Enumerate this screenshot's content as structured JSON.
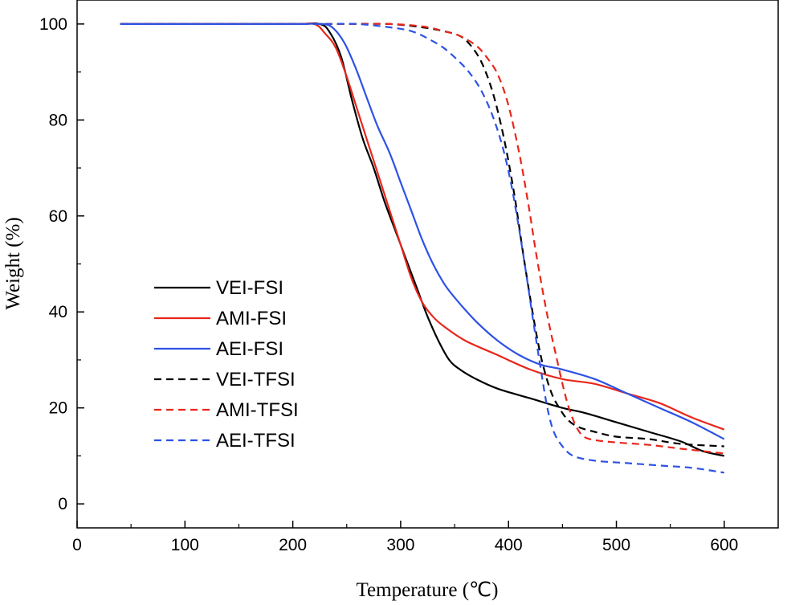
{
  "chart_data": {
    "type": "line",
    "title": "",
    "xlabel": "Temperature (℃)",
    "ylabel": "Weight (%)",
    "xlim": [
      0,
      650
    ],
    "ylim": [
      -5,
      105
    ],
    "xticks": [
      0,
      100,
      200,
      300,
      400,
      500,
      600
    ],
    "yticks": [
      0,
      20,
      40,
      60,
      80,
      100
    ],
    "xtick_labels": [
      "0",
      "100",
      "200",
      "300",
      "400",
      "500",
      "600"
    ],
    "ytick_labels": [
      "0",
      "20",
      "40",
      "60",
      "80",
      "100"
    ],
    "grid": false,
    "legend_position": "center-left",
    "series": [
      {
        "name": "VEI-FSI",
        "color": "#000000",
        "dash": "solid",
        "x": [
          40,
          100,
          200,
          225,
          235,
          245,
          255,
          265,
          275,
          285,
          295,
          305,
          315,
          325,
          335,
          345,
          355,
          370,
          390,
          420,
          450,
          470,
          500,
          530,
          560,
          580,
          600
        ],
        "y": [
          100,
          100,
          100,
          100,
          98,
          93,
          84,
          76,
          70,
          63,
          57,
          51,
          45,
          39,
          34,
          30,
          28,
          26,
          24,
          22,
          20,
          19,
          17,
          15,
          13,
          11,
          10
        ]
      },
      {
        "name": "AMI-FSI",
        "color": "#e8261b",
        "dash": "solid",
        "x": [
          40,
          100,
          200,
          220,
          230,
          240,
          250,
          260,
          270,
          280,
          290,
          300,
          310,
          320,
          330,
          340,
          360,
          390,
          420,
          450,
          480,
          510,
          540,
          570,
          600
        ],
        "y": [
          100,
          100,
          100,
          100,
          98,
          95,
          89,
          82,
          75,
          68,
          61,
          54,
          47,
          42,
          39,
          37,
          34,
          31,
          28,
          26,
          25,
          23,
          21,
          18,
          15.5
        ]
      },
      {
        "name": "AEI-FSI",
        "color": "#2d52e6",
        "dash": "solid",
        "x": [
          40,
          100,
          200,
          228,
          238,
          248,
          258,
          268,
          278,
          290,
          300,
          310,
          320,
          330,
          340,
          350,
          370,
          390,
          410,
          430,
          450,
          480,
          510,
          540,
          570,
          600
        ],
        "y": [
          100,
          100,
          100,
          100,
          99,
          96,
          91,
          85,
          79,
          73,
          67,
          61,
          55,
          50,
          46,
          43,
          38,
          34,
          31,
          29,
          28,
          26,
          23,
          20,
          17,
          13.5
        ]
      },
      {
        "name": "VEI-TFSI",
        "color": "#000000",
        "dash": "dashed",
        "x": [
          40,
          100,
          200,
          250,
          290,
          320,
          340,
          355,
          365,
          375,
          385,
          395,
          405,
          413,
          420,
          427,
          433,
          440,
          447,
          455,
          465,
          480,
          500,
          530,
          560,
          600
        ],
        "y": [
          100,
          100,
          100,
          100,
          100,
          99.3,
          98.5,
          97.5,
          95.5,
          92,
          86,
          77,
          65,
          53,
          43,
          34,
          28,
          23,
          20,
          17.5,
          16,
          15,
          14,
          13.5,
          12.5,
          12
        ]
      },
      {
        "name": "AMI-TFSI",
        "color": "#e8261b",
        "dash": "dashed",
        "x": [
          40,
          100,
          200,
          250,
          290,
          320,
          340,
          355,
          370,
          380,
          390,
          400,
          410,
          418,
          425,
          432,
          438,
          444,
          450,
          456,
          463,
          470,
          480,
          500,
          530,
          560,
          600
        ],
        "y": [
          100,
          100,
          100,
          100,
          100,
          99.5,
          98.5,
          97.5,
          95.5,
          93,
          89.5,
          83,
          73,
          63,
          53,
          44,
          37,
          31,
          25,
          20,
          16,
          14,
          13.3,
          12.8,
          12.3,
          11.5,
          10.5
        ]
      },
      {
        "name": "AEI-TFSI",
        "color": "#2d52e6",
        "dash": "dashed",
        "x": [
          40,
          100,
          200,
          230,
          260,
          290,
          310,
          325,
          340,
          355,
          365,
          375,
          385,
          395,
          403,
          410,
          417,
          423,
          430,
          436,
          442,
          450,
          460,
          480,
          510,
          540,
          570,
          600
        ],
        "y": [
          100,
          100,
          100,
          100,
          100,
          99.3,
          98.5,
          97,
          95,
          92,
          89.5,
          86,
          81,
          74,
          66,
          57,
          47,
          38,
          28,
          20,
          15,
          12,
          10,
          9,
          8.5,
          8,
          7.5,
          6.5
        ]
      }
    ]
  }
}
